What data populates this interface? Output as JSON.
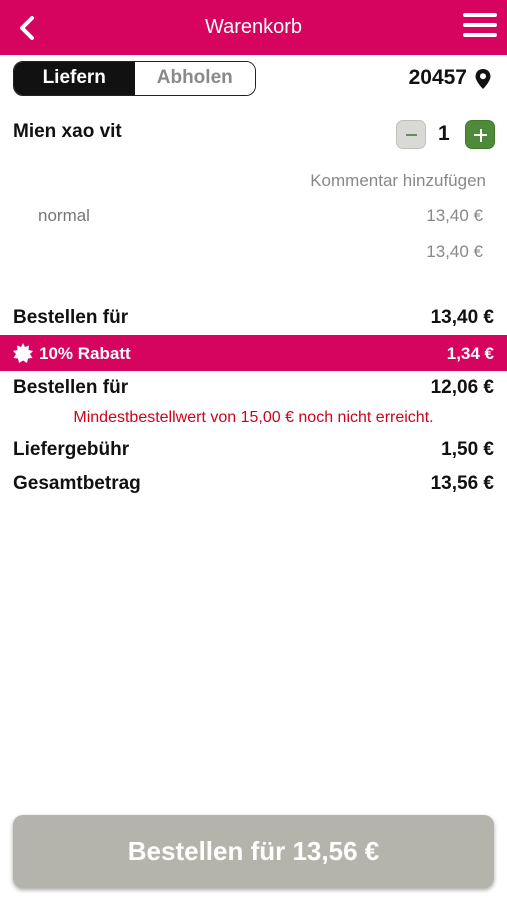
{
  "header": {
    "title": "Warenkorb"
  },
  "mode": {
    "deliver_label": "Liefern",
    "pickup_label": "Abholen",
    "active": "deliver"
  },
  "postcode": "20457",
  "cart": {
    "item": {
      "name": "Mien xao vit",
      "quantity": "1",
      "comment_link": "Kommentar hinzufügen",
      "variant": "normal",
      "variant_price": "13,40 €",
      "item_total": "13,40 €"
    }
  },
  "summary": {
    "subtotal_label": "Bestellen für",
    "subtotal_value": "13,40 €",
    "discount_label": "10% Rabatt",
    "discount_value": "1,34 €",
    "discounted_label": "Bestellen für",
    "discounted_value": "12,06 €",
    "min_order_warning": "Mindestbestellwert von 15,00 € noch nicht erreicht.",
    "delivery_fee_label": "Liefergebühr",
    "delivery_fee_value": "1,50 €",
    "total_label": "Gesamtbetrag",
    "total_value": "13,56 €"
  },
  "order_button": {
    "label": "Bestellen für 13,56 €",
    "enabled": false
  },
  "colors": {
    "brand": "#d6045f",
    "plus_green": "#4f8a3a",
    "warning_red": "#d0021b",
    "disabled_button": "#b5b4ac"
  },
  "icons": {
    "back": "chevron-left-icon",
    "menu": "hamburger-menu-icon",
    "location": "map-pin-icon",
    "discount": "discount-badge-icon"
  }
}
